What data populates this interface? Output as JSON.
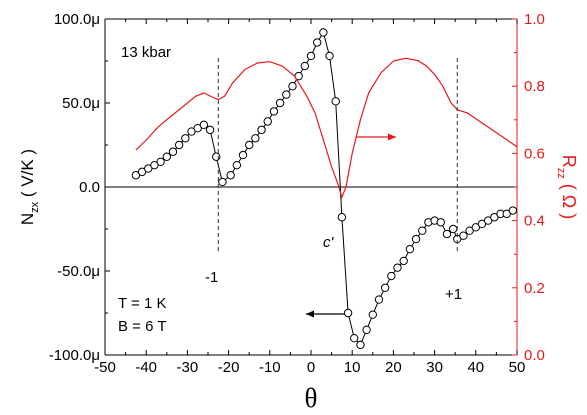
{
  "chart_data": {
    "type": "line",
    "xlabel": "θ",
    "xlim": [
      -50,
      50
    ],
    "x_ticks": [
      -50,
      -40,
      -30,
      -20,
      -10,
      0,
      10,
      20,
      30,
      40,
      50
    ],
    "left_axis": {
      "label_main": "N",
      "label_sub": "zx",
      "label_unit": "( V/K )",
      "ylim": [
        -100,
        100
      ],
      "ticks": [
        -100,
        -50,
        0,
        50,
        100
      ],
      "tick_labels": [
        "-100.0μ",
        "-50.0μ",
        "0.0",
        "50.0μ",
        "100.0μ"
      ],
      "color": "#000000"
    },
    "right_axis": {
      "label_main": "R",
      "label_sub": "zz",
      "label_unit": "( Ω )",
      "ylim": [
        0.0,
        1.0
      ],
      "ticks": [
        0.0,
        0.2,
        0.4,
        0.6,
        0.8,
        1.0
      ],
      "tick_labels": [
        "0.0",
        "0.2",
        "0.4",
        "0.6",
        "0.8",
        "1.0"
      ],
      "color": "#e8191a"
    },
    "series": [
      {
        "axis": "left",
        "style": "line-open-circles",
        "color": "#000000",
        "x": [
          -42.5,
          -41,
          -39.5,
          -38,
          -36.5,
          -35,
          -33.5,
          -32,
          -30.5,
          -29,
          -27.5,
          -26,
          -24.5,
          -23,
          -21.5,
          -19.5,
          -18,
          -16.5,
          -15,
          -13.5,
          -12,
          -10.5,
          -9,
          -7.5,
          -6,
          -4.5,
          -3,
          -1.5,
          0,
          1.5,
          3,
          4.5,
          6,
          7.5,
          9,
          10.5,
          12,
          13.5,
          15,
          16.5,
          18,
          19.5,
          21,
          22.5,
          24,
          25.5,
          27,
          28.5,
          30,
          31.5,
          33,
          34.5,
          35.5,
          37,
          38.5,
          40,
          41.5,
          43,
          44.5,
          46,
          47.5,
          49
        ],
        "y": [
          7,
          9,
          11,
          13,
          15,
          18,
          21,
          25,
          29,
          33,
          35,
          37,
          34,
          18,
          3,
          7,
          13,
          19,
          25,
          29,
          34,
          39,
          45,
          50,
          55,
          60,
          66,
          72,
          78,
          86,
          92,
          78,
          51,
          -18,
          -75,
          -90,
          -94,
          -85,
          -76,
          -67,
          -60,
          -53,
          -48,
          -44,
          -37,
          -31,
          -26,
          -21,
          -20,
          -21,
          -28,
          -25,
          -31,
          -29,
          -26,
          -24,
          -22,
          -20,
          -18,
          -16,
          -16,
          -14
        ]
      },
      {
        "axis": "right",
        "style": "line",
        "color": "#e8191a",
        "x": [
          -42.5,
          -40,
          -37,
          -34,
          -31,
          -28,
          -26,
          -24,
          -22.5,
          -21,
          -19,
          -16,
          -13,
          -10,
          -7,
          -4,
          -1,
          1,
          3,
          5,
          6.5,
          7.5,
          8.5,
          10,
          12,
          14,
          17,
          20,
          23,
          26,
          28,
          30,
          32,
          34,
          35.5,
          38,
          41,
          44,
          47,
          50
        ],
        "y": [
          0.61,
          0.64,
          0.68,
          0.71,
          0.74,
          0.77,
          0.78,
          0.768,
          0.76,
          0.77,
          0.81,
          0.85,
          0.869,
          0.873,
          0.86,
          0.83,
          0.77,
          0.72,
          0.64,
          0.56,
          0.51,
          0.47,
          0.5,
          0.6,
          0.7,
          0.78,
          0.84,
          0.875,
          0.883,
          0.876,
          0.86,
          0.835,
          0.8,
          0.75,
          0.73,
          0.72,
          0.695,
          0.67,
          0.645,
          0.62
        ]
      }
    ],
    "annotations": {
      "pressure": "13 kbar",
      "temperature": "T = 1 K",
      "field": "B = 6 T",
      "label_minus1": "-1",
      "label_plus1": "+1",
      "label_cprime": "c'"
    },
    "dashed_markers_x": [
      -22.5,
      35.5
    ],
    "zero_line": true,
    "grid": false
  }
}
